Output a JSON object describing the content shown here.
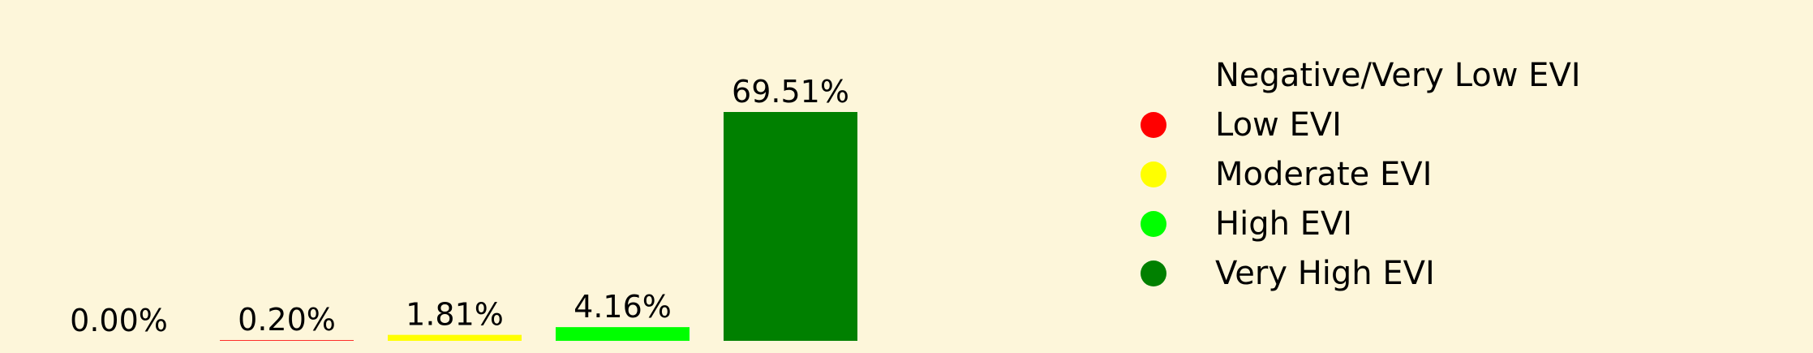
{
  "chart_data": {
    "type": "bar",
    "categories": [
      "Negative/Very Low EVI",
      "Low EVI",
      "Moderate EVI",
      "High EVI",
      "Very High EVI"
    ],
    "values": [
      0.0,
      0.2,
      1.81,
      4.16,
      69.51
    ],
    "data_labels": [
      "0.00%",
      "0.20%",
      "1.81%",
      "4.16%",
      "69.51%"
    ],
    "colors": [
      "#fdf6da",
      "#ff0000",
      "#ffff00",
      "#00ff00",
      "#008000"
    ],
    "ylim": [
      0,
      69.51
    ],
    "grid": false,
    "legend": {
      "placement": "right",
      "entries": [
        {
          "label": "Negative/Very Low EVI",
          "color": "#fdf6da"
        },
        {
          "label": "Low EVI",
          "color": "#ff0000"
        },
        {
          "label": "Moderate EVI",
          "color": "#ffff00"
        },
        {
          "label": "High EVI",
          "color": "#00ff00"
        },
        {
          "label": "Very High EVI",
          "color": "#008000"
        }
      ]
    }
  }
}
